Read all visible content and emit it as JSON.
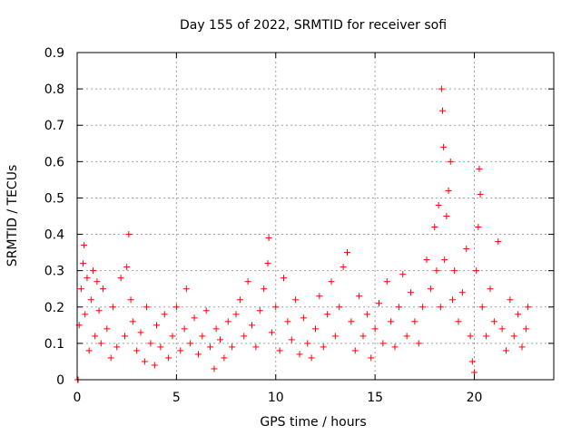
{
  "chart_data": {
    "type": "scatter",
    "title": "Day 155 of 2022, SRMTID for receiver sofi",
    "xlabel": "GPS time / hours",
    "ylabel": "SRMTID / TECUs",
    "xlim": [
      0,
      24
    ],
    "ylim": [
      0,
      0.9
    ],
    "x_ticks": [
      0,
      5,
      10,
      15,
      20
    ],
    "x_tick_labels": [
      "0",
      "5",
      "10",
      "15",
      "20"
    ],
    "y_ticks": [
      0,
      0.1,
      0.2,
      0.3,
      0.4,
      0.5,
      0.6,
      0.7,
      0.8,
      0.9
    ],
    "y_tick_labels": [
      "0",
      "0.1",
      "0.2",
      "0.3",
      "0.4",
      "0.5",
      "0.6",
      "0.7",
      "0.8",
      "0.9"
    ],
    "grid": true,
    "marker": "plus",
    "colors": {
      "points": "#ff0000",
      "axes": "#000000",
      "grid": "#a0a0a0"
    },
    "series": [
      {
        "name": "SRMTID",
        "points": [
          [
            0.02,
            0.0
          ],
          [
            0.05,
            0.0
          ],
          [
            0.1,
            0.15
          ],
          [
            0.2,
            0.25
          ],
          [
            0.3,
            0.32
          ],
          [
            0.35,
            0.37
          ],
          [
            0.4,
            0.18
          ],
          [
            0.5,
            0.28
          ],
          [
            0.6,
            0.08
          ],
          [
            0.7,
            0.22
          ],
          [
            0.8,
            0.3
          ],
          [
            0.9,
            0.12
          ],
          [
            1.0,
            0.27
          ],
          [
            1.1,
            0.19
          ],
          [
            1.2,
            0.1
          ],
          [
            1.3,
            0.25
          ],
          [
            1.5,
            0.14
          ],
          [
            1.7,
            0.06
          ],
          [
            1.8,
            0.2
          ],
          [
            2.0,
            0.09
          ],
          [
            2.2,
            0.28
          ],
          [
            2.4,
            0.12
          ],
          [
            2.5,
            0.31
          ],
          [
            2.6,
            0.4
          ],
          [
            2.7,
            0.22
          ],
          [
            2.8,
            0.16
          ],
          [
            3.0,
            0.08
          ],
          [
            3.2,
            0.13
          ],
          [
            3.4,
            0.05
          ],
          [
            3.5,
            0.2
          ],
          [
            3.7,
            0.1
          ],
          [
            3.9,
            0.04
          ],
          [
            4.0,
            0.15
          ],
          [
            4.2,
            0.09
          ],
          [
            4.4,
            0.18
          ],
          [
            4.6,
            0.06
          ],
          [
            4.8,
            0.12
          ],
          [
            5.0,
            0.2
          ],
          [
            5.2,
            0.08
          ],
          [
            5.4,
            0.14
          ],
          [
            5.5,
            0.25
          ],
          [
            5.7,
            0.1
          ],
          [
            5.9,
            0.17
          ],
          [
            6.1,
            0.07
          ],
          [
            6.3,
            0.12
          ],
          [
            6.5,
            0.19
          ],
          [
            6.7,
            0.09
          ],
          [
            6.9,
            0.03
          ],
          [
            7.0,
            0.14
          ],
          [
            7.2,
            0.11
          ],
          [
            7.4,
            0.06
          ],
          [
            7.6,
            0.16
          ],
          [
            7.8,
            0.09
          ],
          [
            8.0,
            0.18
          ],
          [
            8.2,
            0.22
          ],
          [
            8.4,
            0.12
          ],
          [
            8.6,
            0.27
          ],
          [
            8.8,
            0.15
          ],
          [
            9.0,
            0.09
          ],
          [
            9.2,
            0.19
          ],
          [
            9.4,
            0.25
          ],
          [
            9.6,
            0.32
          ],
          [
            9.65,
            0.39
          ],
          [
            9.8,
            0.13
          ],
          [
            10.0,
            0.2
          ],
          [
            10.2,
            0.08
          ],
          [
            10.4,
            0.28
          ],
          [
            10.6,
            0.16
          ],
          [
            10.8,
            0.11
          ],
          [
            11.0,
            0.22
          ],
          [
            11.2,
            0.07
          ],
          [
            11.4,
            0.17
          ],
          [
            11.6,
            0.1
          ],
          [
            11.8,
            0.06
          ],
          [
            12.0,
            0.14
          ],
          [
            12.2,
            0.23
          ],
          [
            12.4,
            0.09
          ],
          [
            12.6,
            0.18
          ],
          [
            12.8,
            0.27
          ],
          [
            13.0,
            0.12
          ],
          [
            13.2,
            0.2
          ],
          [
            13.4,
            0.31
          ],
          [
            13.6,
            0.35
          ],
          [
            13.8,
            0.16
          ],
          [
            14.0,
            0.08
          ],
          [
            14.2,
            0.23
          ],
          [
            14.4,
            0.12
          ],
          [
            14.6,
            0.18
          ],
          [
            14.8,
            0.06
          ],
          [
            15.0,
            0.14
          ],
          [
            15.2,
            0.21
          ],
          [
            15.4,
            0.1
          ],
          [
            15.6,
            0.27
          ],
          [
            15.8,
            0.16
          ],
          [
            16.0,
            0.09
          ],
          [
            16.2,
            0.2
          ],
          [
            16.4,
            0.29
          ],
          [
            16.6,
            0.12
          ],
          [
            16.8,
            0.24
          ],
          [
            17.0,
            0.16
          ],
          [
            17.2,
            0.1
          ],
          [
            17.4,
            0.2
          ],
          [
            17.6,
            0.33
          ],
          [
            17.8,
            0.25
          ],
          [
            18.0,
            0.42
          ],
          [
            18.1,
            0.3
          ],
          [
            18.2,
            0.48
          ],
          [
            18.3,
            0.2
          ],
          [
            18.35,
            0.8
          ],
          [
            18.4,
            0.74
          ],
          [
            18.45,
            0.64
          ],
          [
            18.5,
            0.33
          ],
          [
            18.6,
            0.45
          ],
          [
            18.7,
            0.52
          ],
          [
            18.8,
            0.6
          ],
          [
            18.9,
            0.22
          ],
          [
            19.0,
            0.3
          ],
          [
            19.2,
            0.16
          ],
          [
            19.4,
            0.24
          ],
          [
            19.6,
            0.36
          ],
          [
            19.8,
            0.12
          ],
          [
            19.9,
            0.05
          ],
          [
            20.0,
            0.02
          ],
          [
            20.1,
            0.3
          ],
          [
            20.2,
            0.42
          ],
          [
            20.25,
            0.58
          ],
          [
            20.3,
            0.51
          ],
          [
            20.4,
            0.2
          ],
          [
            20.6,
            0.12
          ],
          [
            20.8,
            0.25
          ],
          [
            21.0,
            0.16
          ],
          [
            21.2,
            0.38
          ],
          [
            21.4,
            0.14
          ],
          [
            21.6,
            0.08
          ],
          [
            21.8,
            0.22
          ],
          [
            22.0,
            0.12
          ],
          [
            22.2,
            0.18
          ],
          [
            22.4,
            0.09
          ],
          [
            22.6,
            0.14
          ],
          [
            22.7,
            0.2
          ]
        ]
      }
    ]
  }
}
